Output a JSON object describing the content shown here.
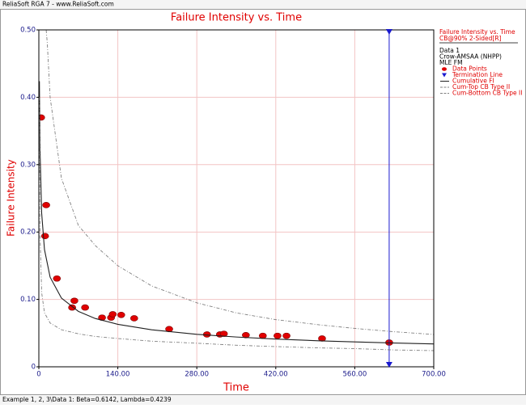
{
  "app_title": "ReliaSoft RGA 7 - www.ReliaSoft.com",
  "status": "Example 1, 2, 3\\Data 1: Beta=0.6142, Lambda=0.4239",
  "chart_data": {
    "type": "scatter",
    "title": "Failure Intensity vs. Time",
    "x_label": "Time",
    "y_label": "Failure Intensity",
    "xlim": [
      0,
      700
    ],
    "ylim": [
      0,
      0.5
    ],
    "xticks": [
      0,
      {
        "value": 140,
        "label": "140.00"
      },
      {
        "value": 280,
        "label": "280.00"
      },
      {
        "value": 420,
        "label": "420.00"
      },
      {
        "value": 560,
        "label": "560.00"
      },
      {
        "value": 700,
        "label": "700.00"
      }
    ],
    "yticks": [
      0,
      {
        "value": 0.1,
        "label": "0.10"
      },
      {
        "value": 0.2,
        "label": "0.20"
      },
      {
        "value": 0.3,
        "label": "0.30"
      },
      {
        "value": 0.4,
        "label": "0.40"
      },
      {
        "value": 0.5,
        "label": "0.50"
      }
    ],
    "grid": true,
    "legend_header": [
      "Failure Intensity vs. Time",
      "CB@90% 2-Sided[R]"
    ],
    "legend_info": [
      "Data 1",
      "Crow-AMSAA (NHPP)",
      "MLE FM"
    ],
    "series": [
      {
        "name": "Data Points",
        "kind": "points",
        "color": "#e00000",
        "x": [
          4,
          11,
          13,
          32,
          59,
          63,
          82,
          112,
          128,
          131,
          146,
          169,
          231,
          298,
          321,
          328,
          367,
          397,
          423,
          439,
          502,
          621
        ],
        "values": [
          0.37,
          0.194,
          0.24,
          0.131,
          0.088,
          0.098,
          0.088,
          0.073,
          0.073,
          0.078,
          0.077,
          0.072,
          0.056,
          0.048,
          0.048,
          0.049,
          0.047,
          0.046,
          0.046,
          0.046,
          0.042,
          0.036
        ]
      },
      {
        "name": "Termination Line",
        "kind": "vline",
        "color": "#1a1ad0",
        "x": 621
      },
      {
        "name": "Cumulative FI",
        "kind": "line",
        "color": "#202020",
        "x": [
          1,
          2,
          5,
          10,
          20,
          40,
          70,
          100,
          140,
          200,
          280,
          350,
          420,
          500,
          560,
          630,
          700
        ],
        "values": [
          0.4239,
          0.325,
          0.228,
          0.174,
          0.133,
          0.102,
          0.0823,
          0.0717,
          0.063,
          0.0549,
          0.0482,
          0.0442,
          0.0412,
          0.0385,
          0.0369,
          0.0353,
          0.0339
        ]
      },
      {
        "name": "Cum-Top CB Type II",
        "kind": "dashed",
        "color": "#808080",
        "x": [
          13,
          15,
          20,
          40,
          70,
          100,
          140,
          200,
          280,
          350,
          420,
          500,
          560,
          630,
          700
        ],
        "values": [
          0.5,
          0.48,
          0.4,
          0.28,
          0.21,
          0.18,
          0.15,
          0.12,
          0.095,
          0.08,
          0.07,
          0.062,
          0.057,
          0.052,
          0.048
        ]
      },
      {
        "name": "Cum-Bottom CB Type II",
        "kind": "dashed",
        "color": "#808080",
        "x": [
          1,
          2,
          5,
          10,
          20,
          40,
          70,
          100,
          140,
          200,
          280,
          350,
          420,
          500,
          560,
          630,
          700
        ],
        "values": [
          0.4,
          0.2,
          0.11,
          0.08,
          0.065,
          0.055,
          0.049,
          0.045,
          0.042,
          0.038,
          0.035,
          0.032,
          0.03,
          0.028,
          0.027,
          0.025,
          0.024
        ]
      }
    ]
  }
}
